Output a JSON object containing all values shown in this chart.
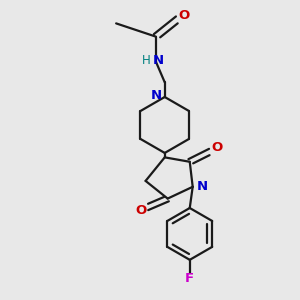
{
  "background_color": "#e8e8e8",
  "bond_color": "#1a1a1a",
  "nitrogen_color": "#0000cc",
  "oxygen_color": "#cc0000",
  "fluorine_color": "#cc00cc",
  "nh_color": "#008080",
  "figsize": [
    3.0,
    3.0
  ],
  "dpi": 100,
  "xlim": [
    0,
    10
  ],
  "ylim": [
    0,
    10
  ],
  "lw": 1.6
}
